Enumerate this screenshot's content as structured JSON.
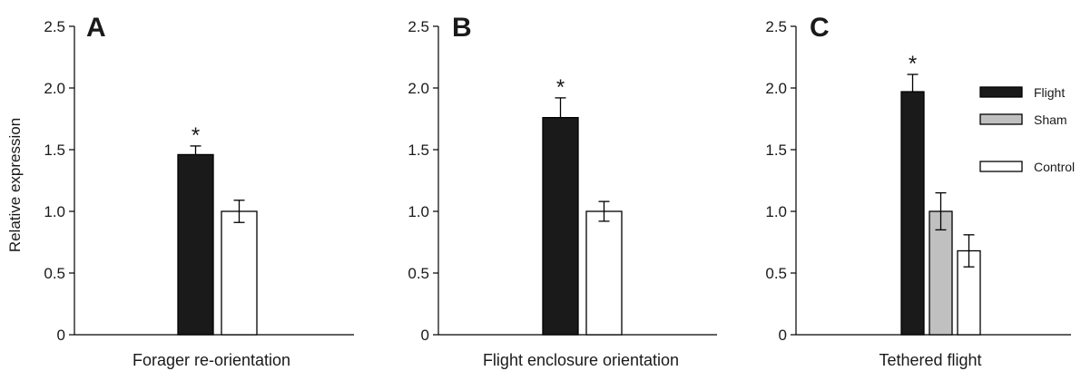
{
  "chart_data": [
    {
      "type": "bar",
      "panel": "A",
      "xlabel": "Forager re-orientation",
      "ylabel": "Relative expression",
      "ylim": [
        0,
        2.5
      ],
      "yticks": [
        "0",
        "0.5",
        "1.0",
        "1.5",
        "2.0",
        "2.5"
      ],
      "ytick_values": [
        0,
        0.5,
        1.0,
        1.5,
        2.0,
        2.5
      ],
      "bars": [
        {
          "series": "Flight",
          "value": 1.46,
          "error": 0.07,
          "color": "#1a1a1a",
          "significant": true
        },
        {
          "series": "Control",
          "value": 1.0,
          "error": 0.09,
          "color": "#ffffff",
          "significant": false
        }
      ]
    },
    {
      "type": "bar",
      "panel": "B",
      "xlabel": "Flight enclosure orientation",
      "ylim": [
        0,
        2.5
      ],
      "yticks": [
        "0",
        "0.5",
        "1.0",
        "1.5",
        "2.0",
        "2.5"
      ],
      "ytick_values": [
        0,
        0.5,
        1.0,
        1.5,
        2.0,
        2.5
      ],
      "bars": [
        {
          "series": "Flight",
          "value": 1.76,
          "error": 0.16,
          "color": "#1a1a1a",
          "significant": true
        },
        {
          "series": "Control",
          "value": 1.0,
          "error": 0.08,
          "color": "#ffffff",
          "significant": false
        }
      ]
    },
    {
      "type": "bar",
      "panel": "C",
      "xlabel": "Tethered flight",
      "ylim": [
        0,
        2.5
      ],
      "yticks": [
        "0",
        "0.5",
        "1.0",
        "1.5",
        "2.0",
        "2.5"
      ],
      "ytick_values": [
        0,
        0.5,
        1.0,
        1.5,
        2.0,
        2.5
      ],
      "bars": [
        {
          "series": "Flight",
          "value": 1.97,
          "error": 0.14,
          "color": "#1a1a1a",
          "significant": true
        },
        {
          "series": "Sham",
          "value": 1.0,
          "error": 0.15,
          "color": "#c0c0c0",
          "significant": false
        },
        {
          "series": "Control",
          "value": 0.68,
          "error": 0.13,
          "color": "#ffffff",
          "significant": false
        }
      ],
      "legend": {
        "placement": "top-right",
        "entries": [
          {
            "label": "Flight",
            "color": "#1a1a1a"
          },
          {
            "label": "Sham",
            "color": "#c0c0c0"
          },
          {
            "label": "Control",
            "color": "#ffffff"
          }
        ]
      }
    }
  ],
  "significance_marker": "*"
}
